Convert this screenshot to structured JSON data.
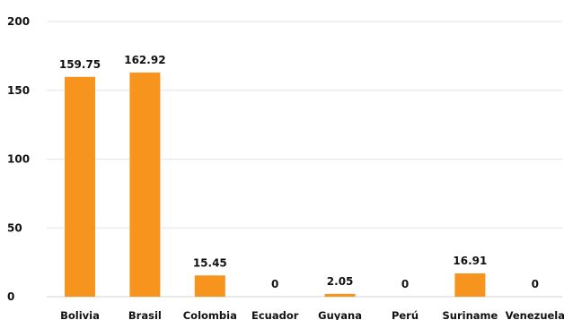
{
  "chart_data": {
    "type": "bar",
    "title": "",
    "xlabel": "",
    "ylabel": "",
    "categories": [
      "Bolivia",
      "Brasil",
      "Colombia",
      "Ecuador",
      "Guyana",
      "Perú",
      "Suriname",
      "Venezuela"
    ],
    "values": [
      159.75,
      162.92,
      15.45,
      0,
      2.05,
      0,
      16.91,
      0
    ],
    "data_labels": [
      "159.75",
      "162.92",
      "15.45",
      "0",
      "2.05",
      "0",
      "16.91",
      "0"
    ],
    "ylim": [
      0,
      200
    ],
    "yticks": [
      0,
      50,
      100,
      150,
      200
    ],
    "grid": true,
    "legend": "none",
    "bar_color": "#F7941D"
  }
}
